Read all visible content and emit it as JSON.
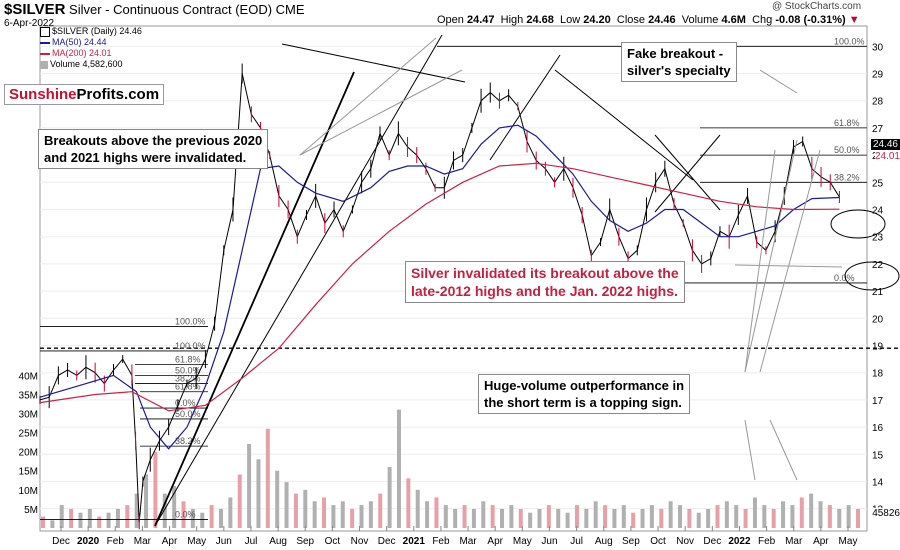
{
  "header": {
    "symbol": "$SILVER",
    "name": "Silver - Continuous Contract (EOD)",
    "exchange": "CME",
    "date": "6-Apr-2022",
    "brand": "@ StockCharts.com",
    "open_label": "Open",
    "open": "24.47",
    "high_label": "High",
    "high": "24.68",
    "low_label": "Low",
    "low": "24.20",
    "close_label": "Close",
    "close": "24.46",
    "volume_label": "Volume",
    "volume": "4.6M",
    "chg_label": "Chg",
    "chg": "-0.08 (-0.31%)"
  },
  "legend": {
    "price": "$SILVER (Daily) 24.46",
    "ma50": "MA(50) 24.44",
    "ma200": "MA(200) 24.01",
    "volume": "Volume 4,582,600"
  },
  "logo": {
    "part1": "Sunshine",
    "part2": "Profits.com"
  },
  "annotations": {
    "fake_breakout_1": "Fake breakout -",
    "fake_breakout_2": "silver's specialty",
    "breakouts_1": "Breakouts above the previous 2020",
    "breakouts_2": "and 2021 highs were invalidated.",
    "invalidated_1": "Silver invalidated its breakout above the",
    "invalidated_2": "late-2012 highs and the Jan. 2022 highs.",
    "volume_1": "Huge-volume outperformance in",
    "volume_2": "the short term is a topping sign."
  },
  "price_labels": {
    "last": "24.46",
    "ma": "24.01",
    "vol_last": "45826"
  },
  "colors": {
    "price_up": "#000000",
    "price_down": "#cc0033",
    "ma50": "#1a1aa0",
    "ma200": "#d02040",
    "volume_bar": "#b0b0b0",
    "volume_bar_down": "#e8a0a8",
    "annotation_red": "#c42040",
    "fib": "#000000"
  },
  "chart_data": {
    "type": "line",
    "x_tick_labels": [
      "Dec",
      "2020",
      "Feb",
      "Mar",
      "Apr",
      "May",
      "Jun",
      "Jul",
      "Aug",
      "Sep",
      "Oct",
      "Nov",
      "Dec",
      "2021",
      "Feb",
      "Mar",
      "Apr",
      "May",
      "Jun",
      "Jul",
      "Aug",
      "Sep",
      "Oct",
      "Nov",
      "Dec",
      "2022",
      "Feb",
      "Mar",
      "Apr",
      "May"
    ],
    "y_ticks": [
      13,
      14,
      15,
      16,
      17,
      18,
      19,
      20,
      21,
      22,
      23,
      24,
      25,
      26,
      27,
      28,
      29,
      30
    ],
    "ylim": [
      12.4,
      30.6
    ],
    "volume_ticks": [
      "5M",
      "10M",
      "15M",
      "20M",
      "25M",
      "30M",
      "35M",
      "40M"
    ],
    "volume_tick_values": [
      5,
      10,
      15,
      20,
      25,
      30,
      35,
      40
    ],
    "volume_ylim": [
      0,
      44
    ],
    "series": [
      {
        "name": "$SILVER",
        "points": [
          [
            0,
            17.0
          ],
          [
            1,
            17.1
          ],
          [
            2,
            17.9
          ],
          [
            3,
            18.1
          ],
          [
            4,
            17.9
          ],
          [
            5,
            18.2
          ],
          [
            6,
            18.0
          ],
          [
            7,
            17.6
          ],
          [
            8,
            18.1
          ],
          [
            9,
            18.5
          ],
          [
            10,
            17.9
          ],
          [
            10.4,
            15.5
          ],
          [
            10.8,
            12.5
          ],
          [
            11.2,
            14.0
          ],
          [
            12,
            14.8
          ],
          [
            13,
            15.5
          ],
          [
            14,
            16.0
          ],
          [
            15,
            16.8
          ],
          [
            16,
            17.6
          ],
          [
            17,
            17.8
          ],
          [
            18,
            18.5
          ],
          [
            19,
            19.8
          ],
          [
            20,
            22.5
          ],
          [
            21,
            24.0
          ],
          [
            22,
            29.0
          ],
          [
            23,
            27.5
          ],
          [
            24,
            27.0
          ],
          [
            25,
            26.0
          ],
          [
            26,
            24.5
          ],
          [
            27,
            24.0
          ],
          [
            28,
            23.0
          ],
          [
            29,
            23.8
          ],
          [
            30,
            24.5
          ],
          [
            31,
            23.5
          ],
          [
            32,
            24.0
          ],
          [
            33,
            23.2
          ],
          [
            34,
            24.0
          ],
          [
            35,
            25.0
          ],
          [
            36,
            25.5
          ],
          [
            37,
            26.8
          ],
          [
            38,
            26.0
          ],
          [
            39,
            26.8
          ],
          [
            40,
            26.3
          ],
          [
            41,
            26.0
          ],
          [
            42,
            25.5
          ],
          [
            43,
            24.8
          ],
          [
            44,
            24.8
          ],
          [
            45,
            25.8
          ],
          [
            46,
            26.0
          ],
          [
            47,
            27.0
          ],
          [
            48,
            28.0
          ],
          [
            49,
            28.3
          ],
          [
            50,
            28.0
          ],
          [
            51,
            28.2
          ],
          [
            52,
            27.8
          ],
          [
            53,
            26.5
          ],
          [
            54,
            25.8
          ],
          [
            55,
            25.5
          ],
          [
            56,
            25.0
          ],
          [
            57,
            25.5
          ],
          [
            58,
            24.8
          ],
          [
            59,
            23.8
          ],
          [
            60,
            22.3
          ],
          [
            61,
            22.8
          ],
          [
            62,
            24.0
          ],
          [
            63,
            23.0
          ],
          [
            64,
            22.2
          ],
          [
            65,
            22.5
          ],
          [
            66,
            24.0
          ],
          [
            67,
            25.0
          ],
          [
            68,
            25.5
          ],
          [
            69,
            24.2
          ],
          [
            70,
            23.5
          ],
          [
            71,
            22.5
          ],
          [
            72,
            22.0
          ],
          [
            73,
            22.2
          ],
          [
            74,
            23.2
          ],
          [
            75,
            23.0
          ],
          [
            76,
            23.8
          ],
          [
            77,
            24.5
          ],
          [
            78,
            22.8
          ],
          [
            79,
            22.5
          ],
          [
            80,
            23.2
          ],
          [
            81,
            24.5
          ],
          [
            82,
            26.3
          ],
          [
            83,
            26.5
          ],
          [
            84,
            25.5
          ],
          [
            85,
            25.2
          ],
          [
            86,
            25.0
          ],
          [
            87,
            24.46
          ]
        ]
      },
      {
        "name": "MA(50)",
        "points": [
          [
            0,
            17.1
          ],
          [
            4,
            17.5
          ],
          [
            8,
            17.9
          ],
          [
            10.5,
            17.3
          ],
          [
            12,
            16.0
          ],
          [
            14,
            15.2
          ],
          [
            16,
            16.0
          ],
          [
            18,
            17.5
          ],
          [
            20,
            19.5
          ],
          [
            22,
            22.5
          ],
          [
            24,
            25.5
          ],
          [
            26,
            25.6
          ],
          [
            28,
            25.0
          ],
          [
            30,
            24.6
          ],
          [
            33,
            24.3
          ],
          [
            36,
            24.8
          ],
          [
            38,
            25.4
          ],
          [
            40,
            25.6
          ],
          [
            42,
            25.6
          ],
          [
            44,
            25.3
          ],
          [
            46,
            25.5
          ],
          [
            48,
            26.4
          ],
          [
            50,
            27.0
          ],
          [
            52,
            27.1
          ],
          [
            54,
            26.7
          ],
          [
            56,
            26.0
          ],
          [
            58,
            25.3
          ],
          [
            60,
            24.3
          ],
          [
            62,
            23.6
          ],
          [
            64,
            23.2
          ],
          [
            66,
            23.5
          ],
          [
            68,
            24.0
          ],
          [
            70,
            24.0
          ],
          [
            72,
            23.5
          ],
          [
            74,
            23.0
          ],
          [
            76,
            23.0
          ],
          [
            78,
            23.2
          ],
          [
            80,
            23.4
          ],
          [
            82,
            24.0
          ],
          [
            84,
            24.4
          ],
          [
            87,
            24.44
          ]
        ]
      },
      {
        "name": "MA(200)",
        "points": [
          [
            0,
            16.9
          ],
          [
            6,
            17.2
          ],
          [
            10,
            17.3
          ],
          [
            14,
            16.6
          ],
          [
            18,
            16.8
          ],
          [
            22,
            17.8
          ],
          [
            26,
            18.9
          ],
          [
            30,
            20.5
          ],
          [
            34,
            22.0
          ],
          [
            38,
            23.2
          ],
          [
            42,
            24.2
          ],
          [
            46,
            25.0
          ],
          [
            50,
            25.6
          ],
          [
            54,
            25.7
          ],
          [
            58,
            25.5
          ],
          [
            62,
            25.2
          ],
          [
            66,
            24.9
          ],
          [
            70,
            24.6
          ],
          [
            74,
            24.3
          ],
          [
            78,
            24.1
          ],
          [
            82,
            24.0
          ],
          [
            87,
            24.01
          ]
        ]
      }
    ],
    "volume_series": [
      3,
      2,
      6,
      5,
      4,
      5,
      3,
      4,
      5,
      6,
      9,
      14,
      20,
      9,
      11,
      7,
      5,
      4,
      6,
      5,
      8,
      14,
      22,
      18,
      26,
      15,
      12,
      9,
      10,
      7,
      8,
      6,
      7,
      5,
      6,
      7,
      9,
      16,
      31,
      13,
      10,
      7,
      8,
      6,
      5,
      6,
      5,
      7,
      6,
      5,
      6,
      5,
      4,
      5,
      6,
      5,
      4,
      6,
      5,
      7,
      6,
      5,
      6,
      4,
      5,
      6,
      5,
      7,
      6,
      5,
      4,
      5,
      6,
      7,
      6,
      5,
      8,
      6,
      5,
      7,
      6,
      8,
      9,
      7,
      6,
      5,
      6,
      5
    ],
    "horizontal_levels": [
      {
        "label": "100.0%",
        "value": 30.0
      },
      {
        "label": "61.8%",
        "value": 27.0
      },
      {
        "label": "50.0%",
        "value": 26.0
      },
      {
        "label": "38.2%",
        "value": 25.0
      },
      {
        "label": "0.0%",
        "value": 21.3
      },
      {
        "label": "",
        "value": 18.9
      },
      {
        "label": "100.0%",
        "value": 19.7
      },
      {
        "label": "100.0%",
        "value": 18.8
      },
      {
        "label": "61.8%",
        "value": 18.3
      },
      {
        "label": "50.0%",
        "value": 17.9
      },
      {
        "label": "38.2%",
        "value": 17.6
      },
      {
        "label": "61.8%",
        "value": 17.3
      },
      {
        "label": "0.0%",
        "value": 16.7
      },
      {
        "label": "50.0%",
        "value": 16.3
      },
      {
        "label": "38.2%",
        "value": 15.3
      },
      {
        "label": "0.0%",
        "value": 12.6
      }
    ]
  }
}
